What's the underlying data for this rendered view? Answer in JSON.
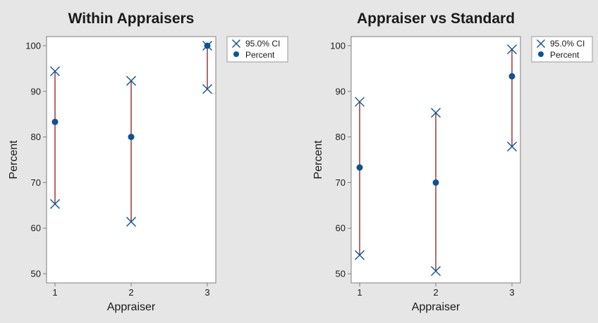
{
  "colors": {
    "background": "#e6e6e6",
    "plot_area": "#ffffff",
    "ci_line": "#8b1a1a",
    "marker": "#0b5394",
    "axis": "#7f7f7f"
  },
  "legend": {
    "ci_label": "95.0% CI",
    "percent_label": "Percent"
  },
  "chart_data": [
    {
      "type": "scatter",
      "title": "Within Appraisers",
      "xlabel": "Appraiser",
      "ylabel": "Percent",
      "categories": [
        "1",
        "2",
        "3"
      ],
      "ylim": [
        48,
        102
      ],
      "yticks": [
        50,
        60,
        70,
        80,
        90,
        100
      ],
      "grid": false,
      "legend_position": "top-right",
      "series": [
        {
          "name": "Percent",
          "values": [
            83.3,
            80.0,
            100.0
          ]
        },
        {
          "name": "95.0% CI",
          "lower": [
            65.3,
            61.4,
            90.5
          ],
          "upper": [
            94.4,
            92.3,
            100.0
          ]
        }
      ]
    },
    {
      "type": "scatter",
      "title": "Appraiser vs Standard",
      "xlabel": "Appraiser",
      "ylabel": "Percent",
      "categories": [
        "1",
        "2",
        "3"
      ],
      "ylim": [
        48,
        102
      ],
      "yticks": [
        50,
        60,
        70,
        80,
        90,
        100
      ],
      "grid": false,
      "legend_position": "top-right",
      "series": [
        {
          "name": "Percent",
          "values": [
            73.3,
            70.0,
            93.3
          ]
        },
        {
          "name": "95.0% CI",
          "lower": [
            54.1,
            50.6,
            77.9
          ],
          "upper": [
            87.7,
            85.3,
            99.2
          ]
        }
      ]
    }
  ]
}
